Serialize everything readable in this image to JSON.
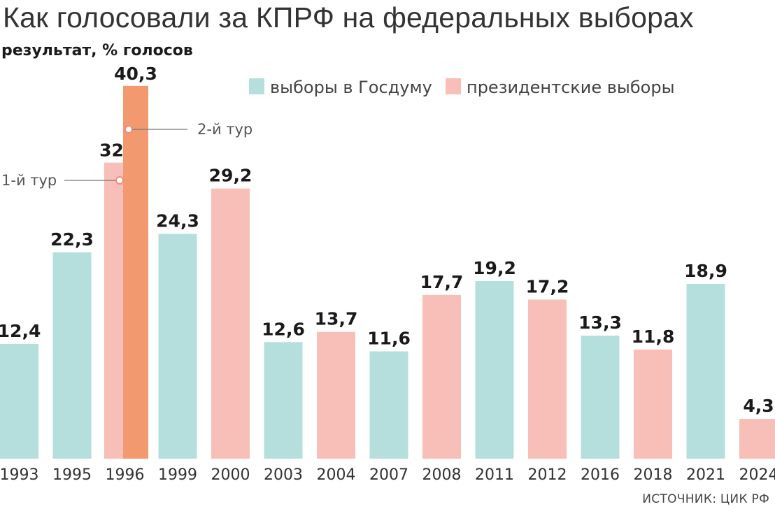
{
  "title": "Как голосовали за КПРФ на федеральных выборах",
  "subtitle": "результат, % голосов",
  "source": "ИСТОЧНИК: ЦИК РФ",
  "colors": {
    "duma": "#b5dfdc",
    "president": "#f7bfb7",
    "president_round2": "#f3996f",
    "text": "#1a1a1a",
    "annotation": "#555555",
    "leader_dot": "#f08a78"
  },
  "chart_data": {
    "type": "bar",
    "title": "Как голосовали за КПРФ на федеральных выборах",
    "ylabel": "результат, % голосов",
    "xlabel": "",
    "ylim": [
      0,
      43
    ],
    "legend": {
      "placement": "top-right",
      "entries": [
        {
          "key": "duma",
          "label": "выборы в Госдуму"
        },
        {
          "key": "president",
          "label": "президентские выборы"
        }
      ]
    },
    "categories": [
      "1993",
      "1995",
      "1996",
      "1999",
      "2000",
      "2003",
      "2004",
      "2007",
      "2008",
      "2011",
      "2012",
      "2016",
      "2018",
      "2021",
      "2024"
    ],
    "bars": [
      {
        "year": "1993",
        "type": "duma",
        "values": [
          {
            "v": 12.4,
            "label": "12,4"
          }
        ]
      },
      {
        "year": "1995",
        "type": "duma",
        "values": [
          {
            "v": 22.3,
            "label": "22,3"
          }
        ]
      },
      {
        "year": "1996",
        "type": "president",
        "values": [
          {
            "v": 32,
            "label": "32",
            "round": "1-й тур"
          },
          {
            "v": 40.3,
            "label": "40,3",
            "round": "2-й тур"
          }
        ]
      },
      {
        "year": "1999",
        "type": "duma",
        "values": [
          {
            "v": 24.3,
            "label": "24,3"
          }
        ]
      },
      {
        "year": "2000",
        "type": "president",
        "values": [
          {
            "v": 29.2,
            "label": "29,2"
          }
        ]
      },
      {
        "year": "2003",
        "type": "duma",
        "values": [
          {
            "v": 12.6,
            "label": "12,6"
          }
        ]
      },
      {
        "year": "2004",
        "type": "president",
        "values": [
          {
            "v": 13.7,
            "label": "13,7"
          }
        ]
      },
      {
        "year": "2007",
        "type": "duma",
        "values": [
          {
            "v": 11.6,
            "label": "11,6"
          }
        ]
      },
      {
        "year": "2008",
        "type": "president",
        "values": [
          {
            "v": 17.7,
            "label": "17,7"
          }
        ]
      },
      {
        "year": "2011",
        "type": "duma",
        "values": [
          {
            "v": 19.2,
            "label": "19,2"
          }
        ]
      },
      {
        "year": "2012",
        "type": "president",
        "values": [
          {
            "v": 17.2,
            "label": "17,2"
          }
        ]
      },
      {
        "year": "2016",
        "type": "duma",
        "values": [
          {
            "v": 13.3,
            "label": "13,3"
          }
        ]
      },
      {
        "year": "2018",
        "type": "president",
        "values": [
          {
            "v": 11.8,
            "label": "11,8"
          }
        ]
      },
      {
        "year": "2021",
        "type": "duma",
        "values": [
          {
            "v": 18.9,
            "label": "18,9"
          }
        ]
      },
      {
        "year": "2024",
        "type": "president",
        "values": [
          {
            "v": 4.3,
            "label": "4,3"
          }
        ]
      }
    ]
  }
}
